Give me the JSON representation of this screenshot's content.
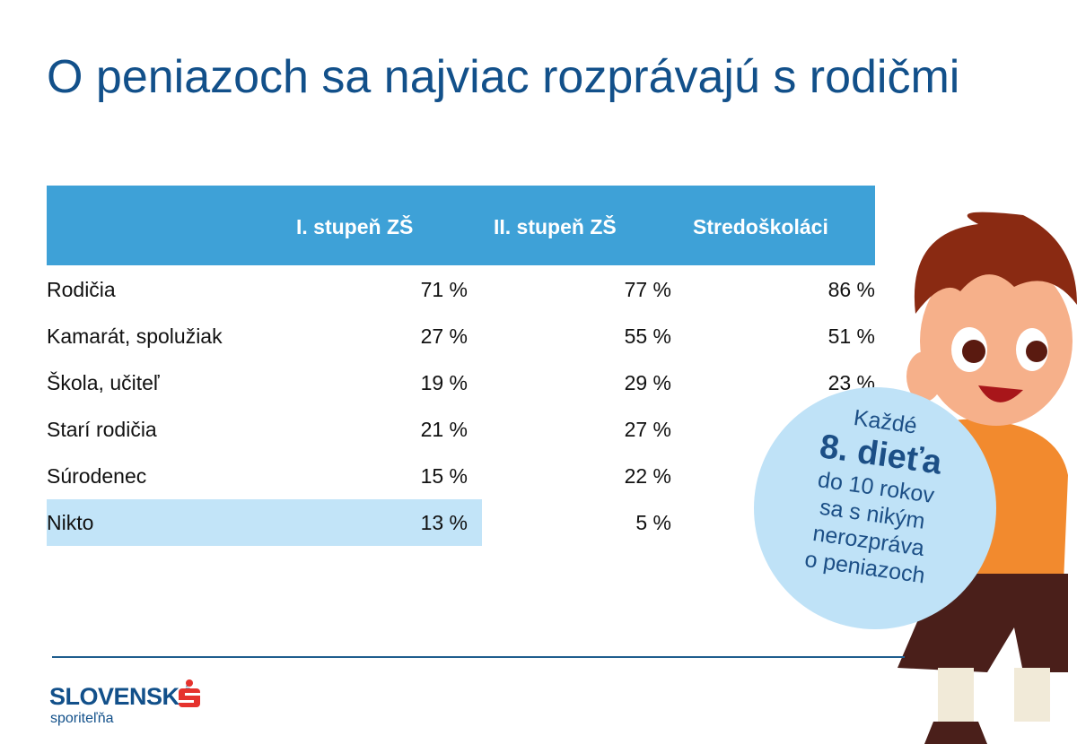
{
  "title": "O peniazoch sa najviac rozprávajú s rodičmi",
  "table": {
    "headers": [
      "I. stupeň ZŠ",
      "II. stupeň  ZŠ",
      "Stredoškoláci"
    ],
    "rows": [
      {
        "label": "Rodičia",
        "values": [
          "71 %",
          "77 %",
          "86 %"
        ]
      },
      {
        "label": "Kamarát, spolužiak",
        "values": [
          "27 %",
          "55 %",
          "51 %"
        ]
      },
      {
        "label": "Škola, učiteľ",
        "values": [
          "19 %",
          "29 %",
          "23 %"
        ]
      },
      {
        "label": "Starí rodičia",
        "values": [
          "21 %",
          "27 %",
          null
        ]
      },
      {
        "label": "Súrodenec",
        "values": [
          "15 %",
          "22 %",
          null
        ]
      },
      {
        "label": "Nikto",
        "values": [
          "13 %",
          "5 %",
          null
        ],
        "highlighted": true
      }
    ]
  },
  "callout": {
    "line1": "Každé",
    "line2": "8. dieťa",
    "line3": "do 10 rokov",
    "line4": "sa s nikým",
    "line5": "nerozpráva",
    "line6": "o peniazoch"
  },
  "logo": {
    "name": "SLOVENSKÁ",
    "sub": "sporiteľňa"
  },
  "colors": {
    "title": "#12508a",
    "header": "#3ea1d7",
    "highlight": "#c2e4f8",
    "callout": "#bfe2f7",
    "logo_red": "#e5322d"
  }
}
